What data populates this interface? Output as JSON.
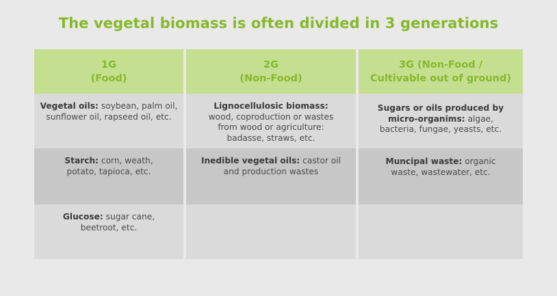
{
  "title": "The vegetal biomass is often divided in 3 generations",
  "columns": [
    {
      "head_line1": "1G",
      "head_line2": "(Food)",
      "rows": [
        {
          "bold": "Vegetal oils:",
          "text": " soybean, palm oil, sunflower oil, rapseed oil, etc."
        },
        {
          "bold": "Starch:",
          "text": " corn, weath, potato, tapioca, etc."
        },
        {
          "bold": "Glucose:",
          "text": " sugar cane, beetroot, etc."
        }
      ]
    },
    {
      "head_line1": "2G",
      "head_line2": "(Non-Food)",
      "rows": [
        {
          "bold": "Lignocellulosic biomass:",
          "text": " wood, coproduction or wastes from wood or agriculture: badasse, straws, etc."
        },
        {
          "bold": "Inedible vegetal oils:",
          "text": " castor oil and production wastes"
        },
        {
          "bold": "",
          "text": ""
        }
      ]
    },
    {
      "head_line1": "3G (Non-Food /",
      "head_line2": "Cultivable out of ground)",
      "rows": [
        {
          "bold": "Sugars or oils produced by micro-organims:",
          "text": " algae, bacteria, fungae, yeasts, etc."
        },
        {
          "bold": "Muncipal waste:",
          "text": " organic waste, wastewater, etc."
        },
        {
          "bold": "",
          "text": ""
        }
      ]
    }
  ]
}
